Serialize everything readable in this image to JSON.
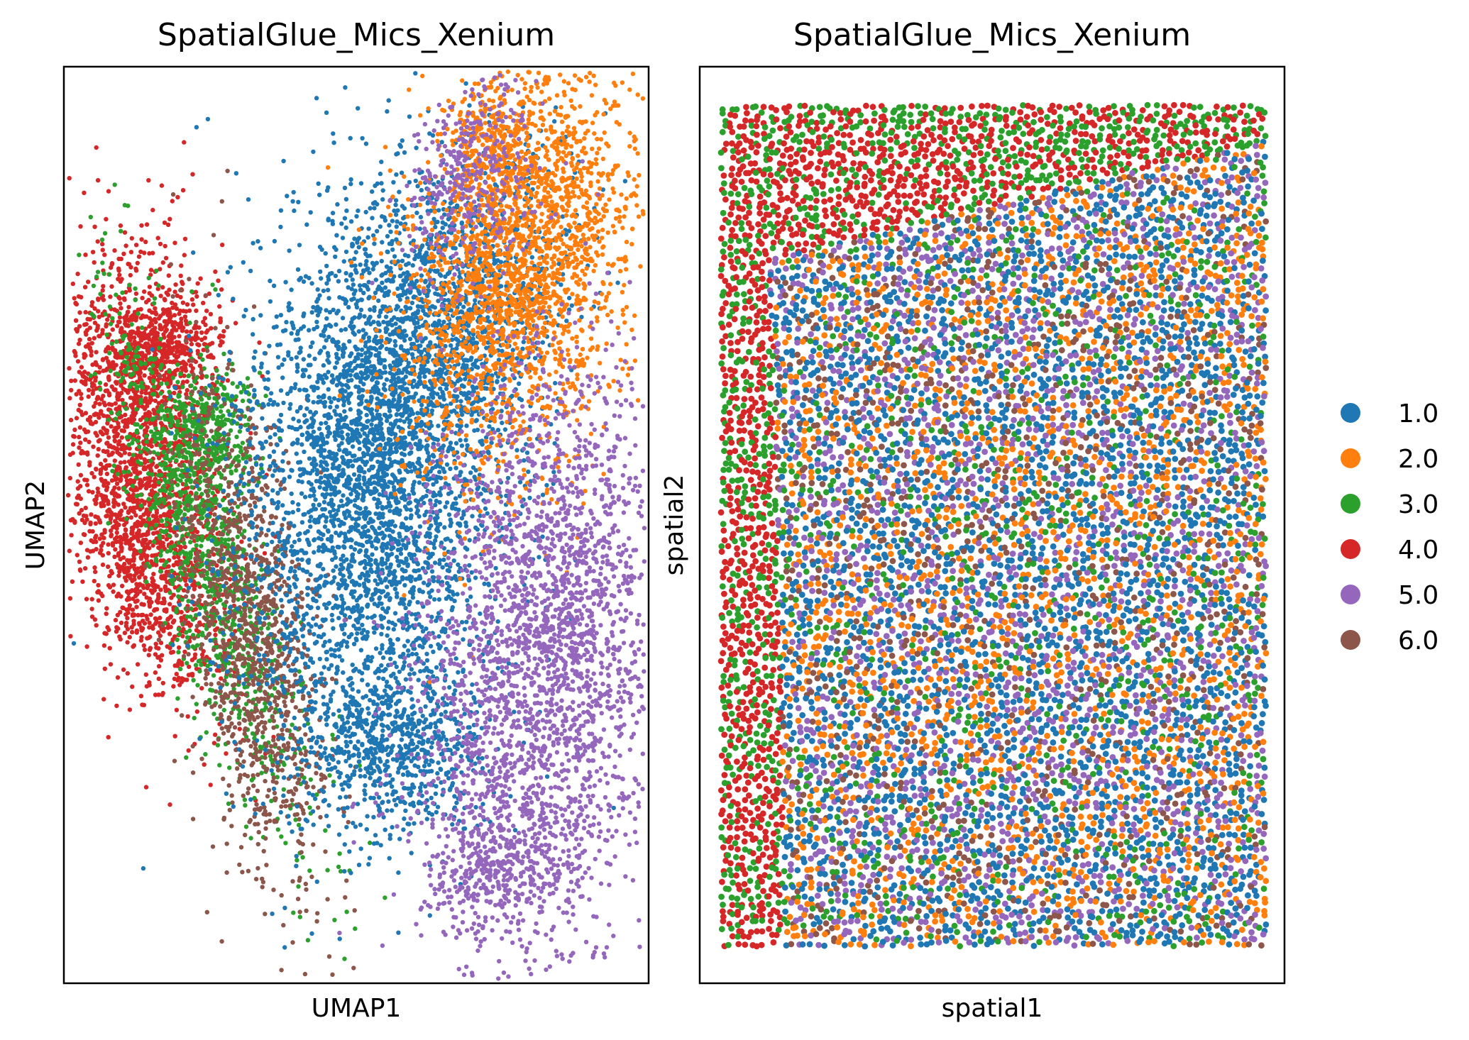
{
  "figure": {
    "background": "#ffffff"
  },
  "legend": {
    "placement": "right",
    "entries": [
      {
        "label": "1.0",
        "color": "#1f77b4"
      },
      {
        "label": "2.0",
        "color": "#ff7f0e"
      },
      {
        "label": "3.0",
        "color": "#2ca02c"
      },
      {
        "label": "4.0",
        "color": "#d62728"
      },
      {
        "label": "5.0",
        "color": "#9467bd"
      },
      {
        "label": "6.0",
        "color": "#8c564b"
      }
    ]
  },
  "chart_data": [
    {
      "type": "scatter",
      "title": "SpatialGlue_Mics_Xenium",
      "xlabel": "UMAP1",
      "ylabel": "UMAP2",
      "ticks": "none",
      "grid": false,
      "clusters": [
        {
          "name": "1.0",
          "color": "#1f77b4",
          "region": "center-column and upper-middle lobe"
        },
        {
          "name": "2.0",
          "color": "#ff7f0e",
          "region": "top-right lobe"
        },
        {
          "name": "3.0",
          "color": "#2ca02c",
          "region": "left lobe, inner band"
        },
        {
          "name": "4.0",
          "color": "#d62728",
          "region": "left lobe, outer edge"
        },
        {
          "name": "5.0",
          "color": "#9467bd",
          "region": "right lobe, lower"
        },
        {
          "name": "6.0",
          "color": "#8c564b",
          "region": "left lobe, inner lower band"
        }
      ]
    },
    {
      "type": "scatter",
      "title": "SpatialGlue_Mics_Xenium",
      "xlabel": "spatial1",
      "ylabel": "spatial2",
      "ticks": "none",
      "grid": false,
      "clusters": [
        {
          "name": "1.0",
          "color": "#1f77b4",
          "region": "interior, mixed"
        },
        {
          "name": "2.0",
          "color": "#ff7f0e",
          "region": "interior, mixed"
        },
        {
          "name": "3.0",
          "color": "#2ca02c",
          "region": "left strip and top band"
        },
        {
          "name": "4.0",
          "color": "#d62728",
          "region": "left strip and top-left block"
        },
        {
          "name": "5.0",
          "color": "#9467bd",
          "region": "interior, mixed"
        },
        {
          "name": "6.0",
          "color": "#8c564b",
          "region": "interior, sparse"
        }
      ]
    }
  ]
}
